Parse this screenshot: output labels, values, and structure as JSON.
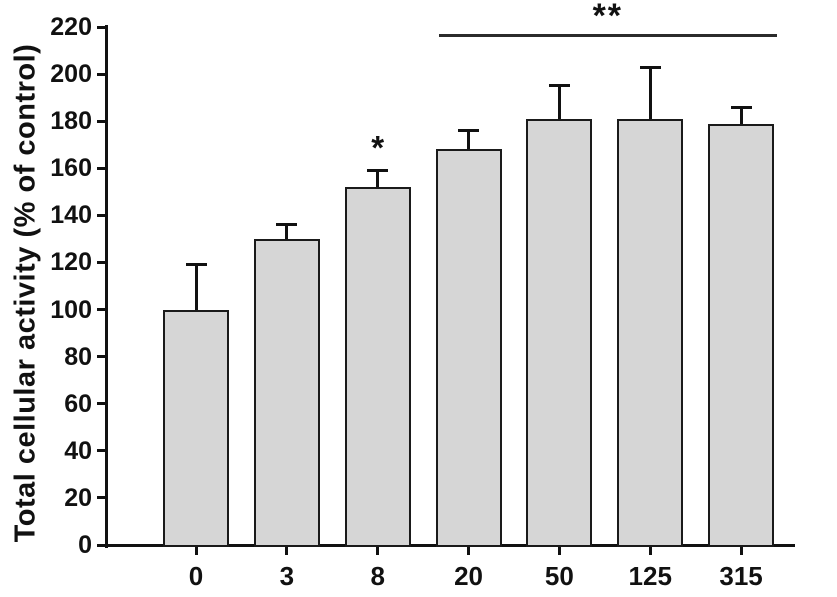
{
  "chart_data": {
    "type": "bar",
    "title": "",
    "ylabel": "Total cellular activity (% of control)",
    "xlabel": "",
    "categories": [
      "0",
      "3",
      "8",
      "20",
      "50",
      "125",
      "315"
    ],
    "values": [
      100,
      130,
      152,
      168,
      181,
      181,
      179
    ],
    "errors_plus": [
      19,
      6,
      7,
      8,
      14,
      22,
      7
    ],
    "ylim": [
      0,
      220
    ],
    "ytick_step": 20,
    "grid": false,
    "legend": "none",
    "bar_fill_color": "#d6d6d6",
    "bar_border_color": "#1a1a1a",
    "axis_color": "#111111",
    "background_color": "#ffffff",
    "annotations": [
      {
        "type": "star",
        "text": "*",
        "bar_index": 2,
        "y_value": 176
      },
      {
        "type": "bracket_line",
        "text": "**",
        "from_index": 3,
        "to_index": 6,
        "y_value": 217
      }
    ]
  }
}
